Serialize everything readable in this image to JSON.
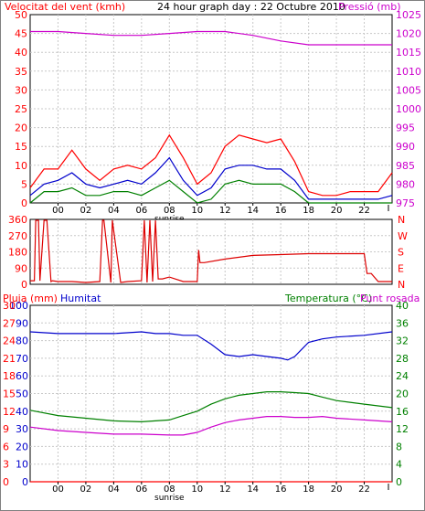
{
  "chart_data": [
    {
      "type": "line",
      "title": "24 hour graph day : 22 Octubre 2010",
      "left_label": "Velocitat del vent (kmh)",
      "right_label": "Pressió (mb)",
      "x_tick_labels": [
        "00",
        "02",
        "04",
        "06",
        "08",
        "10",
        "12",
        "14",
        "16",
        "18",
        "20",
        "22"
      ],
      "x_extra_tick_label": "sunrise",
      "sunrise_x": 8,
      "x_range": [
        -2,
        24
      ],
      "ylim_left": [
        0,
        50
      ],
      "y_ticks_left": [
        0,
        5,
        10,
        15,
        20,
        25,
        30,
        35,
        40,
        45,
        50
      ],
      "ylim_right": [
        975,
        1025
      ],
      "y_ticks_right": [
        975,
        980,
        985,
        990,
        995,
        1000,
        1005,
        1010,
        1015,
        1020,
        1025
      ],
      "grid": true,
      "colors": {
        "gust": "#ff0000",
        "speed": "#0000cc",
        "low": "#008000",
        "pressure": "#cc00cc"
      },
      "series": [
        {
          "key": "pressure",
          "axis": "right",
          "x": [
            -2,
            0,
            2,
            4,
            6,
            8,
            10,
            12,
            14,
            16,
            18,
            20,
            22,
            24
          ],
          "values": [
            1020.5,
            1020.5,
            1020,
            1019.5,
            1019.5,
            1020,
            1020.5,
            1020.5,
            1019.5,
            1018,
            1017,
            1017,
            1017,
            1017
          ]
        },
        {
          "key": "gust",
          "axis": "left",
          "x": [
            -2,
            -1,
            0,
            1,
            2,
            3,
            4,
            5,
            6,
            7,
            8,
            9,
            10,
            11,
            12,
            13,
            14,
            15,
            16,
            17,
            18,
            19,
            20,
            21,
            22,
            23,
            24
          ],
          "values": [
            4,
            9,
            9,
            14,
            9,
            6,
            9,
            10,
            9,
            12,
            18,
            12,
            5,
            8,
            15,
            18,
            17,
            16,
            17,
            11,
            3,
            2,
            2,
            3,
            3,
            3,
            8
          ]
        },
        {
          "key": "speed",
          "axis": "left",
          "x": [
            -2,
            -1,
            0,
            1,
            2,
            3,
            4,
            5,
            6,
            7,
            8,
            9,
            10,
            11,
            12,
            13,
            14,
            15,
            16,
            17,
            18,
            19,
            20,
            21,
            22,
            23,
            24
          ],
          "values": [
            2,
            5,
            6,
            8,
            5,
            4,
            5,
            6,
            5,
            8,
            12,
            6,
            2,
            4,
            9,
            10,
            10,
            9,
            9,
            6,
            1,
            1,
            1,
            1,
            1,
            1,
            2
          ]
        },
        {
          "key": "low",
          "axis": "left",
          "x": [
            -2,
            -1,
            0,
            1,
            2,
            3,
            4,
            5,
            6,
            7,
            8,
            9,
            10,
            11,
            12,
            13,
            14,
            15,
            16,
            17,
            18,
            19,
            20,
            21,
            22,
            23,
            24
          ],
          "values": [
            0,
            3,
            3,
            4,
            2,
            2,
            3,
            3,
            2,
            4,
            6,
            3,
            0,
            1,
            5,
            6,
            5,
            5,
            5,
            3,
            0,
            0,
            0,
            0,
            0,
            0,
            0
          ]
        }
      ]
    },
    {
      "type": "line",
      "y_ticks_left": [
        0,
        90,
        180,
        270,
        360
      ],
      "ylim_left": [
        0,
        360
      ],
      "right_labels": [
        "N",
        "W",
        "S",
        "E",
        "N"
      ],
      "x_range": [
        -2,
        24
      ],
      "grid": true,
      "series": [
        {
          "key": "direction",
          "x": [
            -2,
            -1.7,
            -1.6,
            -1.4,
            -1.3,
            -1,
            -0.8,
            -0.5,
            -0.4,
            0,
            1,
            2,
            3,
            3.2,
            3.3,
            3.8,
            3.9,
            4.5,
            5,
            6,
            6.2,
            6.4,
            6.6,
            6.8,
            7,
            7.2,
            7.5,
            8,
            9,
            10,
            10.1,
            10.2,
            10.5,
            12,
            14,
            16,
            18,
            20,
            22,
            22.2,
            22.5,
            23,
            24
          ],
          "values": [
            20,
            20,
            355,
            355,
            20,
            355,
            355,
            15,
            20,
            15,
            15,
            10,
            15,
            355,
            355,
            10,
            355,
            10,
            15,
            20,
            355,
            10,
            355,
            15,
            355,
            30,
            30,
            40,
            15,
            15,
            190,
            120,
            120,
            140,
            160,
            165,
            170,
            170,
            170,
            60,
            60,
            15,
            15
          ]
        }
      ]
    },
    {
      "type": "line",
      "left_label": "Pluja (mm)",
      "left_label2": "Humitat",
      "right_label": "Temperatura (°C)",
      "right_label2": "Punt rosada",
      "x_tick_labels": [
        "00",
        "02",
        "04",
        "06",
        "08",
        "10",
        "12",
        "14",
        "16",
        "18",
        "20",
        "22"
      ],
      "x_extra_tick_label": "sunrise",
      "sunrise_x": 8,
      "x_range": [
        -2,
        24
      ],
      "ylim_left": [
        0,
        100
      ],
      "y_ticks_left": [
        0,
        10,
        20,
        30,
        40,
        50,
        60,
        70,
        80,
        90,
        100
      ],
      "y_ticks_left2": [
        0,
        3,
        6,
        9,
        12,
        15,
        18,
        21,
        24,
        27,
        30
      ],
      "ylim_right": [
        0,
        40
      ],
      "y_ticks_right": [
        0,
        4,
        8,
        12,
        16,
        20,
        24,
        28,
        32,
        36,
        40
      ],
      "grid": true,
      "colors": {
        "humidity": "#0000cc",
        "temperature": "#008000",
        "dewpoint": "#cc00cc",
        "rain": "#ff0000"
      },
      "series": [
        {
          "key": "humidity",
          "axis": "left2",
          "x": [
            -2,
            0,
            2,
            4,
            6,
            7,
            8,
            9,
            10,
            11,
            12,
            13,
            14,
            15,
            16,
            16.5,
            17,
            18,
            19,
            20,
            22,
            24
          ],
          "values": [
            25.5,
            25.2,
            25.2,
            25.2,
            25.5,
            25.2,
            25.2,
            24.9,
            24.9,
            23.4,
            21.6,
            21.3,
            21.6,
            21.3,
            21,
            20.7,
            21.3,
            23.7,
            24.3,
            24.6,
            24.9,
            25.5
          ]
        },
        {
          "key": "temperature",
          "axis": "right",
          "x": [
            -2,
            0,
            2,
            4,
            6,
            8,
            9,
            10,
            11,
            12,
            13,
            14,
            15,
            16,
            17,
            18,
            19,
            20,
            22,
            24
          ],
          "values": [
            16.2,
            15,
            14.4,
            13.8,
            13.6,
            14,
            15,
            16,
            17.6,
            18.8,
            19.6,
            20,
            20.4,
            20.4,
            20.2,
            20,
            19.2,
            18.4,
            17.6,
            16.8
          ]
        },
        {
          "key": "dewpoint",
          "axis": "right",
          "x": [
            -2,
            0,
            2,
            4,
            6,
            8,
            9,
            10,
            11,
            12,
            13,
            14,
            15,
            16,
            17,
            18,
            19,
            20,
            22,
            24
          ],
          "values": [
            12.4,
            11.6,
            11.2,
            10.8,
            10.8,
            10.6,
            10.6,
            11.2,
            12.4,
            13.4,
            14,
            14.4,
            14.8,
            14.8,
            14.6,
            14.6,
            14.8,
            14.4,
            14,
            13.6
          ]
        },
        {
          "key": "rain",
          "axis": "left",
          "x": [
            -2,
            24
          ],
          "values": [
            0,
            0
          ]
        }
      ]
    }
  ]
}
